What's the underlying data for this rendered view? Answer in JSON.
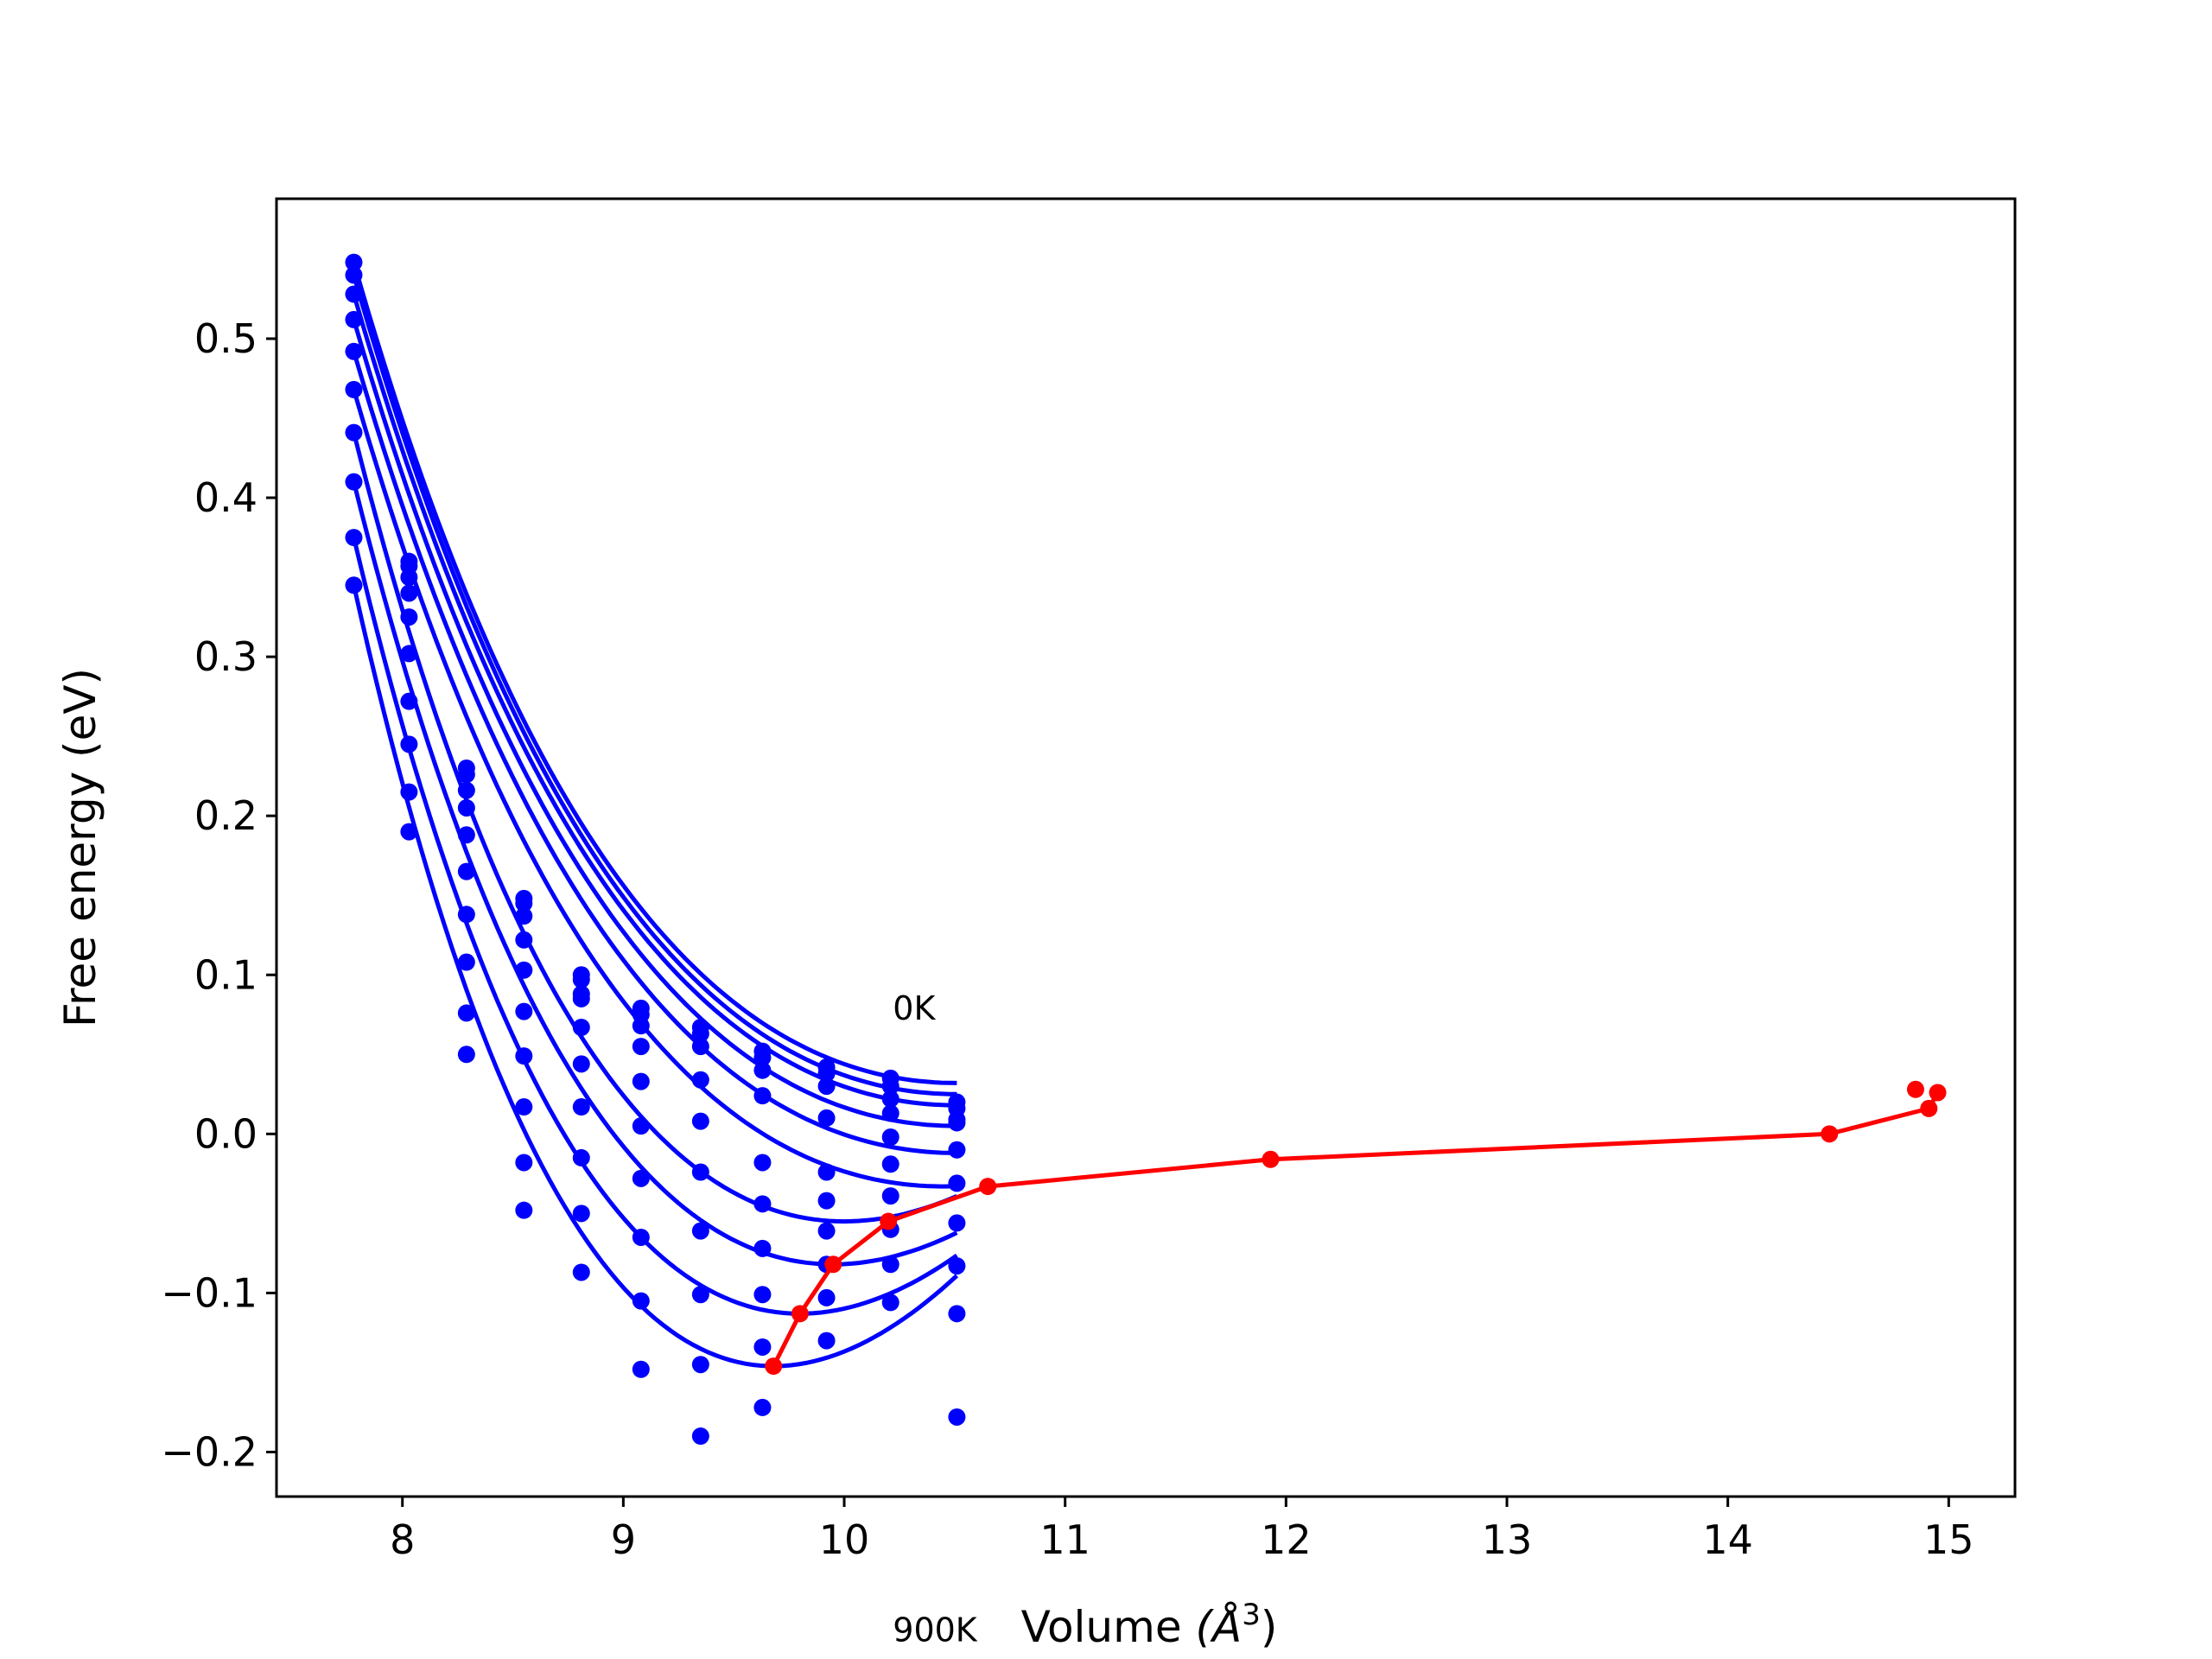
{
  "chart_data": {
    "type": "line",
    "title": "",
    "xlabel": "Volume",
    "xlabel_unit_prefix": "(Å",
    "xlabel_unit_exp": "3",
    "xlabel_unit_suffix": ")",
    "ylabel": "Free energy (eV)",
    "xlim": [
      7.43,
      15.3
    ],
    "ylim": [
      -0.228,
      0.588
    ],
    "xticks": [
      8,
      9,
      10,
      11,
      12,
      13,
      14,
      15
    ],
    "xtick_labels": [
      "8",
      "9",
      "10",
      "11",
      "12",
      "13",
      "14",
      "15"
    ],
    "yticks": [
      -0.2,
      -0.1,
      0.0,
      0.1,
      0.2,
      0.3,
      0.4,
      0.5
    ],
    "ytick_labels": [
      "−0.2",
      "−0.1",
      "0.0",
      "0.1",
      "0.2",
      "0.3",
      "0.4",
      "0.5"
    ],
    "grid": false,
    "legend": false,
    "annotations": [
      {
        "text": "0K",
        "x": 10.22,
        "y": 0.072
      },
      {
        "text": "900K",
        "x": 10.22,
        "y": -0.319
      }
    ],
    "colors": {
      "fits": "#0000ff",
      "minima": "#ff0000",
      "axes": "#000000"
    },
    "x_points": [
      7.78,
      8.03,
      8.29,
      8.55,
      8.81,
      9.08,
      9.35,
      9.63,
      9.92,
      10.21,
      10.51
    ],
    "series": [
      {
        "values": [
          0.548,
          0.36,
          0.23,
          0.148,
          0.1,
          0.079,
          0.067,
          0.052,
          0.042,
          0.035,
          0.02
        ],
        "fit_min_x": 10.51,
        "fit_min_y": 0.032
      },
      {
        "values": [
          0.54,
          0.357,
          0.226,
          0.145,
          0.097,
          0.075,
          0.063,
          0.048,
          0.038,
          0.03,
          0.016
        ],
        "fit_min_x": 10.51,
        "fit_min_y": 0.025
      },
      {
        "values": [
          0.528,
          0.35,
          0.216,
          0.137,
          0.088,
          0.068,
          0.055,
          0.04,
          0.03,
          0.022,
          0.009
        ],
        "fit_min_x": 10.51,
        "fit_min_y": 0.018
      },
      {
        "values": [
          0.512,
          0.34,
          0.205,
          0.122,
          0.085,
          0.055,
          0.034,
          0.024,
          0.01,
          0.013,
          0.007
        ],
        "fit_min_x": 10.51,
        "fit_min_y": 0.005
      },
      {
        "values": [
          0.492,
          0.325,
          0.188,
          0.103,
          0.067,
          0.033,
          0.008,
          -0.018,
          -0.024,
          -0.002,
          -0.01
        ],
        "fit_min_x": 10.51,
        "fit_min_y": -0.012
      },
      {
        "values": [
          0.468,
          0.302,
          0.165,
          0.077,
          0.044,
          0.005,
          -0.024,
          -0.044,
          -0.042,
          -0.019,
          -0.031
        ],
        "fit_min_x": 10.45,
        "fit_min_y": -0.033
      },
      {
        "values": [
          0.441,
          0.272,
          0.138,
          0.049,
          0.017,
          -0.028,
          -0.061,
          -0.072,
          -0.061,
          -0.039,
          -0.056
        ],
        "fit_min_x": 10.0,
        "fit_min_y": -0.055
      },
      {
        "values": [
          0.41,
          0.245,
          0.108,
          0.017,
          -0.015,
          -0.065,
          -0.101,
          -0.101,
          -0.082,
          -0.06,
          -0.083
        ],
        "fit_min_x": 9.95,
        "fit_min_y": -0.082
      },
      {
        "values": [
          0.375,
          0.215,
          0.076,
          -0.018,
          -0.05,
          -0.105,
          -0.145,
          -0.134,
          -0.103,
          -0.082,
          -0.113
        ],
        "fit_min_x": 9.8,
        "fit_min_y": -0.113
      },
      {
        "values": [
          0.345,
          0.19,
          0.05,
          -0.048,
          -0.087,
          -0.148,
          -0.19,
          -0.172,
          -0.13,
          -0.106,
          -0.178
        ],
        "fit_min_x": 9.68,
        "fit_min_y": -0.146
      }
    ],
    "minima_curve": {
      "x": [
        9.68,
        9.8,
        9.95,
        10.2,
        10.65,
        11.93,
        14.46,
        14.91,
        14.95,
        14.85
      ],
      "y": [
        -0.146,
        -0.113,
        -0.082,
        -0.055,
        -0.033,
        -0.016,
        0.0,
        0.016,
        0.026,
        0.028
      ]
    }
  }
}
